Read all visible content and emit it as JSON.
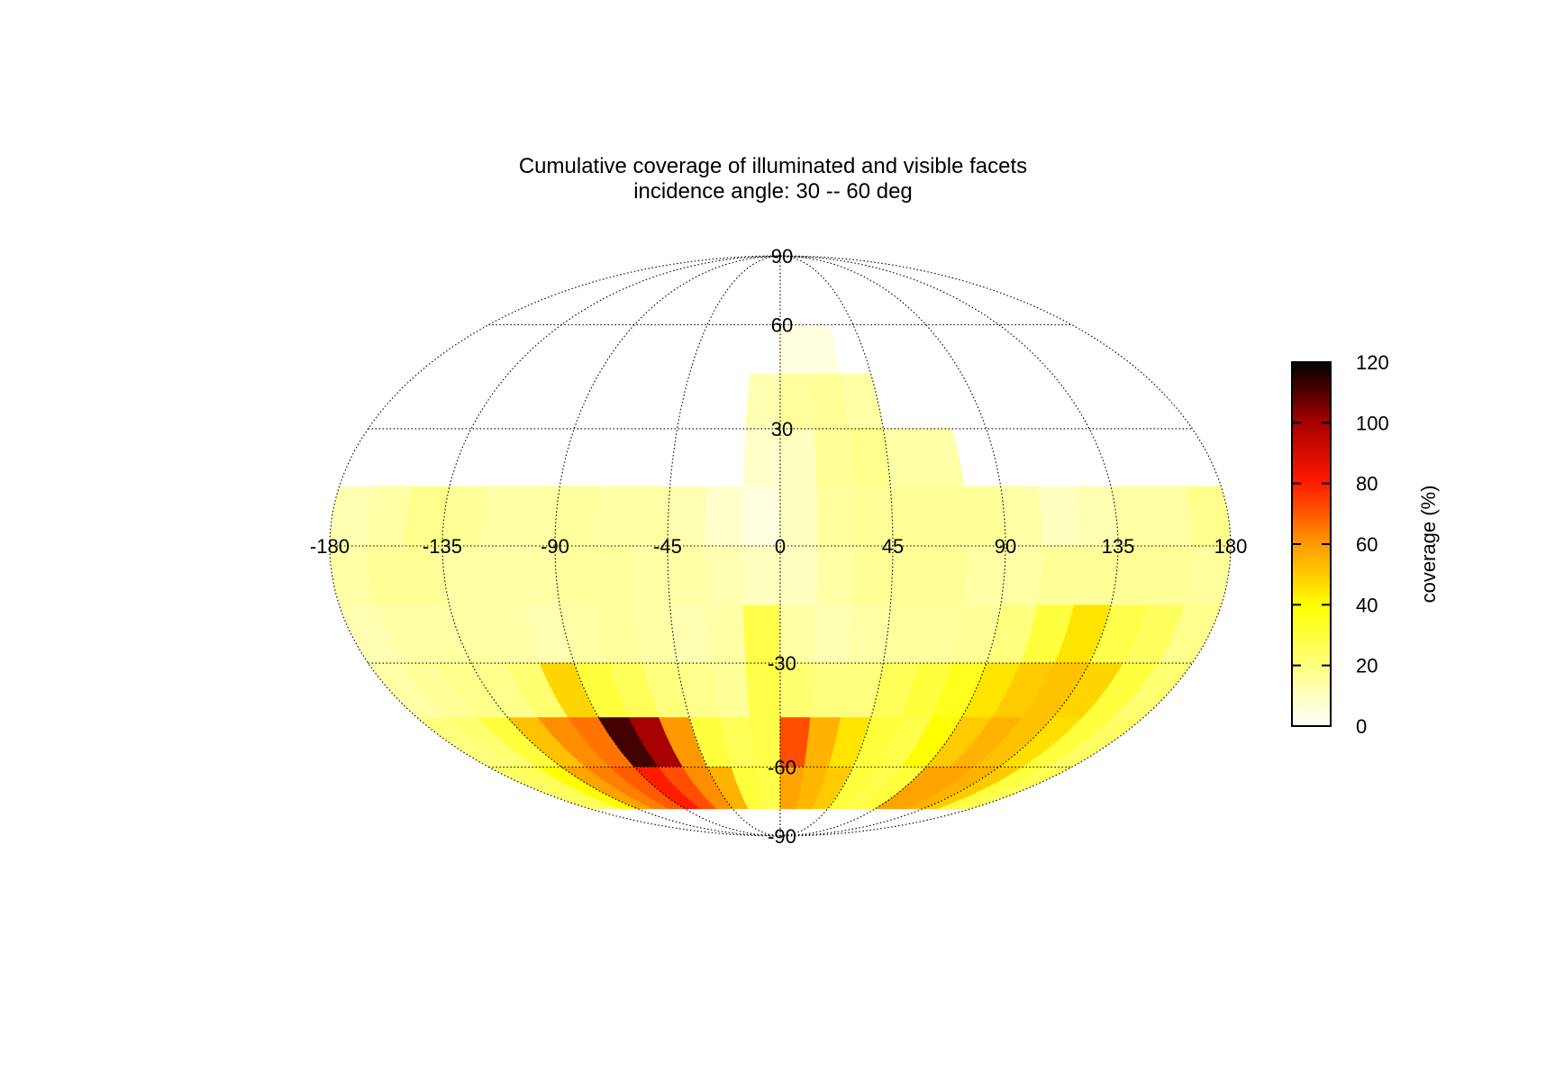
{
  "chart_data": {
    "type": "heatmap",
    "projection": "mollweide",
    "title": "Cumulative coverage of illuminated and visible facets",
    "subtitle": "incidence angle: 30 -- 60 deg",
    "lon_ticks": [
      -180,
      -135,
      -90,
      -45,
      0,
      45,
      90,
      135,
      180
    ],
    "lat_ticks": [
      90,
      60,
      30,
      -30,
      -60,
      -90
    ],
    "lon_range": [
      -180,
      180
    ],
    "lat_range": [
      -90,
      90
    ],
    "colorbar": {
      "label": "coverage (%)",
      "range": [
        0,
        120
      ],
      "ticks": [
        0,
        20,
        40,
        60,
        80,
        100,
        120
      ],
      "colormap": "hot (reversed): white - yellow - orange - red - black"
    },
    "grid": true,
    "lon_step": 15,
    "lat_step": 15,
    "cells": [
      {
        "lat": 45,
        "lon": -15,
        "v": 0
      },
      {
        "lat": 45,
        "lon": 0,
        "v": 5
      },
      {
        "lat": 45,
        "lon": 15,
        "v": 5
      },
      {
        "lat": 30,
        "lon": -15,
        "v": 12
      },
      {
        "lat": 30,
        "lon": 0,
        "v": 15
      },
      {
        "lat": 30,
        "lon": 15,
        "v": 16
      },
      {
        "lat": 30,
        "lon": 30,
        "v": 14
      },
      {
        "lat": 15,
        "lon": -15,
        "v": 8
      },
      {
        "lat": 15,
        "lon": 0,
        "v": 10
      },
      {
        "lat": 15,
        "lon": 15,
        "v": 16
      },
      {
        "lat": 15,
        "lon": 30,
        "v": 18
      },
      {
        "lat": 15,
        "lon": 45,
        "v": 14
      },
      {
        "lat": 15,
        "lon": 60,
        "v": 14
      },
      {
        "lat": 0,
        "lon": -180,
        "v": 12
      },
      {
        "lat": 0,
        "lon": -165,
        "v": 14
      },
      {
        "lat": 0,
        "lon": -150,
        "v": 18
      },
      {
        "lat": 0,
        "lon": -135,
        "v": 16
      },
      {
        "lat": 0,
        "lon": -120,
        "v": 14
      },
      {
        "lat": 0,
        "lon": -105,
        "v": 14
      },
      {
        "lat": 0,
        "lon": -90,
        "v": 15
      },
      {
        "lat": 0,
        "lon": -75,
        "v": 14
      },
      {
        "lat": 0,
        "lon": -60,
        "v": 14
      },
      {
        "lat": 0,
        "lon": -45,
        "v": 12
      },
      {
        "lat": 0,
        "lon": -30,
        "v": 8
      },
      {
        "lat": 0,
        "lon": -15,
        "v": 5
      },
      {
        "lat": 0,
        "lon": 0,
        "v": 10
      },
      {
        "lat": 0,
        "lon": 15,
        "v": 15
      },
      {
        "lat": 0,
        "lon": 30,
        "v": 16
      },
      {
        "lat": 0,
        "lon": 45,
        "v": 16
      },
      {
        "lat": 0,
        "lon": 60,
        "v": 16
      },
      {
        "lat": 0,
        "lon": 75,
        "v": 16
      },
      {
        "lat": 0,
        "lon": 90,
        "v": 14
      },
      {
        "lat": 0,
        "lon": 105,
        "v": 10
      },
      {
        "lat": 0,
        "lon": 120,
        "v": 12
      },
      {
        "lat": 0,
        "lon": 135,
        "v": 14
      },
      {
        "lat": 0,
        "lon": 150,
        "v": 14
      },
      {
        "lat": 0,
        "lon": 165,
        "v": 18
      },
      {
        "lat": -15,
        "lon": -180,
        "v": 14
      },
      {
        "lat": -15,
        "lon": -165,
        "v": 16
      },
      {
        "lat": -15,
        "lon": -150,
        "v": 16
      },
      {
        "lat": -15,
        "lon": -135,
        "v": 14
      },
      {
        "lat": -15,
        "lon": -120,
        "v": 14
      },
      {
        "lat": -15,
        "lon": -105,
        "v": 14
      },
      {
        "lat": -15,
        "lon": -90,
        "v": 15
      },
      {
        "lat": -15,
        "lon": -75,
        "v": 15
      },
      {
        "lat": -15,
        "lon": -60,
        "v": 14
      },
      {
        "lat": -15,
        "lon": -45,
        "v": 14
      },
      {
        "lat": -15,
        "lon": -30,
        "v": 12
      },
      {
        "lat": -15,
        "lon": -15,
        "v": 10
      },
      {
        "lat": -15,
        "lon": 0,
        "v": 10
      },
      {
        "lat": -15,
        "lon": 15,
        "v": 14
      },
      {
        "lat": -15,
        "lon": 30,
        "v": 16
      },
      {
        "lat": -15,
        "lon": 45,
        "v": 16
      },
      {
        "lat": -15,
        "lon": 60,
        "v": 16
      },
      {
        "lat": -15,
        "lon": 75,
        "v": 14
      },
      {
        "lat": -15,
        "lon": 90,
        "v": 14
      },
      {
        "lat": -15,
        "lon": 105,
        "v": 16
      },
      {
        "lat": -15,
        "lon": 120,
        "v": 16
      },
      {
        "lat": -15,
        "lon": 135,
        "v": 16
      },
      {
        "lat": -15,
        "lon": 150,
        "v": 16
      },
      {
        "lat": -15,
        "lon": 165,
        "v": 15
      },
      {
        "lat": -30,
        "lon": -180,
        "v": 12
      },
      {
        "lat": -30,
        "lon": -165,
        "v": 14
      },
      {
        "lat": -30,
        "lon": -150,
        "v": 14
      },
      {
        "lat": -30,
        "lon": -135,
        "v": 14
      },
      {
        "lat": -30,
        "lon": -120,
        "v": 14
      },
      {
        "lat": -30,
        "lon": -105,
        "v": 12
      },
      {
        "lat": -30,
        "lon": -90,
        "v": 14
      },
      {
        "lat": -30,
        "lon": -75,
        "v": 15
      },
      {
        "lat": -30,
        "lon": -60,
        "v": 14
      },
      {
        "lat": -30,
        "lon": -45,
        "v": 12
      },
      {
        "lat": -30,
        "lon": -30,
        "v": 14
      },
      {
        "lat": -30,
        "lon": -15,
        "v": 28
      },
      {
        "lat": -30,
        "lon": 0,
        "v": 14
      },
      {
        "lat": -30,
        "lon": 15,
        "v": 12
      },
      {
        "lat": -30,
        "lon": 30,
        "v": 14
      },
      {
        "lat": -30,
        "lon": 45,
        "v": 15
      },
      {
        "lat": -30,
        "lon": 60,
        "v": 15
      },
      {
        "lat": -30,
        "lon": 75,
        "v": 16
      },
      {
        "lat": -30,
        "lon": 90,
        "v": 20
      },
      {
        "lat": -30,
        "lon": 105,
        "v": 30
      },
      {
        "lat": -30,
        "lon": 120,
        "v": 45
      },
      {
        "lat": -30,
        "lon": 135,
        "v": 28
      },
      {
        "lat": -30,
        "lon": 150,
        "v": 25
      },
      {
        "lat": -30,
        "lon": 165,
        "v": 18
      },
      {
        "lat": -45,
        "lon": -180,
        "v": 14
      },
      {
        "lat": -45,
        "lon": -165,
        "v": 16
      },
      {
        "lat": -45,
        "lon": -150,
        "v": 18
      },
      {
        "lat": -45,
        "lon": -135,
        "v": 18
      },
      {
        "lat": -45,
        "lon": -120,
        "v": 22
      },
      {
        "lat": -45,
        "lon": -105,
        "v": 48
      },
      {
        "lat": -45,
        "lon": -90,
        "v": 30
      },
      {
        "lat": -45,
        "lon": -75,
        "v": 26
      },
      {
        "lat": -45,
        "lon": -60,
        "v": 20
      },
      {
        "lat": -45,
        "lon": -45,
        "v": 18
      },
      {
        "lat": -45,
        "lon": -30,
        "v": 16
      },
      {
        "lat": -45,
        "lon": -15,
        "v": 28
      },
      {
        "lat": -45,
        "lon": 0,
        "v": 22
      },
      {
        "lat": -45,
        "lon": 15,
        "v": 20
      },
      {
        "lat": -45,
        "lon": 30,
        "v": 20
      },
      {
        "lat": -45,
        "lon": 45,
        "v": 26
      },
      {
        "lat": -45,
        "lon": 60,
        "v": 30
      },
      {
        "lat": -45,
        "lon": 75,
        "v": 35
      },
      {
        "lat": -45,
        "lon": 90,
        "v": 45
      },
      {
        "lat": -45,
        "lon": 105,
        "v": 50
      },
      {
        "lat": -45,
        "lon": 120,
        "v": 52
      },
      {
        "lat": -45,
        "lon": 135,
        "v": 48
      },
      {
        "lat": -45,
        "lon": 150,
        "v": 30
      },
      {
        "lat": -45,
        "lon": 165,
        "v": 22
      },
      {
        "lat": -60,
        "lon": -180,
        "v": 20
      },
      {
        "lat": -60,
        "lon": -165,
        "v": 22
      },
      {
        "lat": -60,
        "lon": -150,
        "v": 30
      },
      {
        "lat": -60,
        "lon": -135,
        "v": 52
      },
      {
        "lat": -60,
        "lon": -120,
        "v": 62
      },
      {
        "lat": -60,
        "lon": -105,
        "v": 66
      },
      {
        "lat": -60,
        "lon": -90,
        "v": 112
      },
      {
        "lat": -60,
        "lon": -75,
        "v": 100
      },
      {
        "lat": -60,
        "lon": -60,
        "v": 60
      },
      {
        "lat": -60,
        "lon": -45,
        "v": 30
      },
      {
        "lat": -60,
        "lon": -30,
        "v": 26
      },
      {
        "lat": -60,
        "lon": -15,
        "v": 28
      },
      {
        "lat": -60,
        "lon": 0,
        "v": 72
      },
      {
        "lat": -60,
        "lon": 15,
        "v": 55
      },
      {
        "lat": -60,
        "lon": 30,
        "v": 45
      },
      {
        "lat": -60,
        "lon": 45,
        "v": 30
      },
      {
        "lat": -60,
        "lon": 60,
        "v": 28
      },
      {
        "lat": -60,
        "lon": 75,
        "v": 40
      },
      {
        "lat": -60,
        "lon": 90,
        "v": 50
      },
      {
        "lat": -60,
        "lon": 105,
        "v": 55
      },
      {
        "lat": -60,
        "lon": 120,
        "v": 52
      },
      {
        "lat": -60,
        "lon": 135,
        "v": 46
      },
      {
        "lat": -60,
        "lon": 150,
        "v": 30
      },
      {
        "lat": -60,
        "lon": 165,
        "v": 24
      },
      {
        "lat": -75,
        "lon": -180,
        "v": 24
      },
      {
        "lat": -75,
        "lon": -165,
        "v": 26
      },
      {
        "lat": -75,
        "lon": -150,
        "v": 40
      },
      {
        "lat": -75,
        "lon": -135,
        "v": 58
      },
      {
        "lat": -75,
        "lon": -120,
        "v": 64
      },
      {
        "lat": -75,
        "lon": -105,
        "v": 70
      },
      {
        "lat": -75,
        "lon": -90,
        "v": 80
      },
      {
        "lat": -75,
        "lon": -75,
        "v": 72
      },
      {
        "lat": -75,
        "lon": -60,
        "v": 62
      },
      {
        "lat": -75,
        "lon": -45,
        "v": 55
      },
      {
        "lat": -75,
        "lon": -30,
        "v": 30
      },
      {
        "lat": -75,
        "lon": -15,
        "v": 28
      },
      {
        "lat": -75,
        "lon": 0,
        "v": 58
      },
      {
        "lat": -75,
        "lon": 15,
        "v": 54
      },
      {
        "lat": -75,
        "lon": 30,
        "v": 50
      },
      {
        "lat": -75,
        "lon": 45,
        "v": 30
      },
      {
        "lat": -75,
        "lon": 60,
        "v": 28
      },
      {
        "lat": -75,
        "lon": 75,
        "v": 30
      },
      {
        "lat": -75,
        "lon": 90,
        "v": 58
      },
      {
        "lat": -75,
        "lon": 105,
        "v": 58
      },
      {
        "lat": -75,
        "lon": 120,
        "v": 55
      },
      {
        "lat": -75,
        "lon": 135,
        "v": 50
      },
      {
        "lat": -75,
        "lon": 150,
        "v": 30
      },
      {
        "lat": -75,
        "lon": 165,
        "v": 26
      }
    ]
  }
}
